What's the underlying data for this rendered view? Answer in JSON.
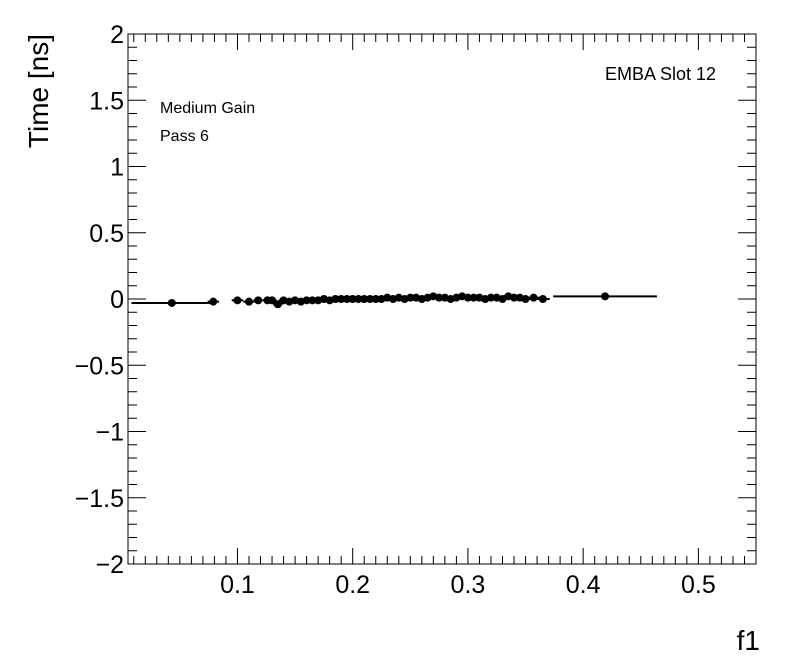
{
  "chart_data": {
    "type": "scatter",
    "title": "",
    "xlabel": "f1",
    "ylabel": "Time [ns]",
    "xlim": [
      0.005,
      0.55
    ],
    "ylim": [
      -2,
      2
    ],
    "x_ticks": [
      {
        "value": 0.1,
        "label": "0.1"
      },
      {
        "value": 0.2,
        "label": "0.2"
      },
      {
        "value": 0.3,
        "label": "0.3"
      },
      {
        "value": 0.4,
        "label": "0.4"
      },
      {
        "value": 0.5,
        "label": "0.5"
      }
    ],
    "y_ticks": [
      {
        "value": 2,
        "label": "2"
      },
      {
        "value": 1.5,
        "label": "1.5"
      },
      {
        "value": 1,
        "label": "1"
      },
      {
        "value": 0.5,
        "label": "0.5"
      },
      {
        "value": 0,
        "label": "0"
      },
      {
        "value": -0.5,
        "label": "−0.5"
      },
      {
        "value": -1,
        "label": "−1"
      },
      {
        "value": -1.5,
        "label": "−1.5"
      },
      {
        "value": -2,
        "label": "−2"
      }
    ],
    "annotations": {
      "module": "EMBA Slot 12",
      "gain": "Medium Gain",
      "pass": "Pass 6"
    },
    "marker_color": "#000000",
    "grid": false,
    "points": [
      {
        "x": 0.043,
        "y": -0.03,
        "xerr": 0.035
      },
      {
        "x": 0.079,
        "y": -0.02,
        "xerr": 0.005
      },
      {
        "x": 0.1,
        "y": -0.01,
        "xerr": 0.005
      },
      {
        "x": 0.11,
        "y": -0.02,
        "xerr": 0.005
      },
      {
        "x": 0.118,
        "y": -0.01,
        "xerr": 0.004
      },
      {
        "x": 0.126,
        "y": -0.01,
        "xerr": 0.004
      },
      {
        "x": 0.13,
        "y": -0.01,
        "xerr": 0.004
      },
      {
        "x": 0.135,
        "y": -0.04,
        "xerr": 0.004
      },
      {
        "x": 0.14,
        "y": -0.01,
        "xerr": 0.004
      },
      {
        "x": 0.145,
        "y": -0.02,
        "xerr": 0.004
      },
      {
        "x": 0.15,
        "y": -0.01,
        "xerr": 0.004
      },
      {
        "x": 0.155,
        "y": -0.02,
        "xerr": 0.004
      },
      {
        "x": 0.16,
        "y": -0.01,
        "xerr": 0.004
      },
      {
        "x": 0.165,
        "y": -0.01,
        "xerr": 0.004
      },
      {
        "x": 0.17,
        "y": -0.01,
        "xerr": 0.004
      },
      {
        "x": 0.175,
        "y": 0.0,
        "xerr": 0.004
      },
      {
        "x": 0.18,
        "y": -0.01,
        "xerr": 0.004
      },
      {
        "x": 0.185,
        "y": 0.0,
        "xerr": 0.004
      },
      {
        "x": 0.19,
        "y": 0.0,
        "xerr": 0.004
      },
      {
        "x": 0.195,
        "y": 0.0,
        "xerr": 0.004
      },
      {
        "x": 0.2,
        "y": 0.0,
        "xerr": 0.004
      },
      {
        "x": 0.205,
        "y": 0.0,
        "xerr": 0.004
      },
      {
        "x": 0.21,
        "y": 0.0,
        "xerr": 0.004
      },
      {
        "x": 0.215,
        "y": 0.0,
        "xerr": 0.004
      },
      {
        "x": 0.22,
        "y": 0.0,
        "xerr": 0.004
      },
      {
        "x": 0.225,
        "y": 0.0,
        "xerr": 0.004
      },
      {
        "x": 0.23,
        "y": 0.01,
        "xerr": 0.004
      },
      {
        "x": 0.235,
        "y": 0.0,
        "xerr": 0.004
      },
      {
        "x": 0.24,
        "y": 0.01,
        "xerr": 0.004
      },
      {
        "x": 0.245,
        "y": 0.0,
        "xerr": 0.004
      },
      {
        "x": 0.25,
        "y": 0.01,
        "xerr": 0.004
      },
      {
        "x": 0.255,
        "y": 0.01,
        "xerr": 0.004
      },
      {
        "x": 0.26,
        "y": 0.0,
        "xerr": 0.004
      },
      {
        "x": 0.265,
        "y": 0.01,
        "xerr": 0.004
      },
      {
        "x": 0.27,
        "y": 0.02,
        "xerr": 0.004
      },
      {
        "x": 0.275,
        "y": 0.01,
        "xerr": 0.004
      },
      {
        "x": 0.28,
        "y": 0.01,
        "xerr": 0.004
      },
      {
        "x": 0.285,
        "y": 0.0,
        "xerr": 0.004
      },
      {
        "x": 0.29,
        "y": 0.01,
        "xerr": 0.004
      },
      {
        "x": 0.295,
        "y": 0.02,
        "xerr": 0.004
      },
      {
        "x": 0.3,
        "y": 0.01,
        "xerr": 0.004
      },
      {
        "x": 0.305,
        "y": 0.01,
        "xerr": 0.004
      },
      {
        "x": 0.31,
        "y": 0.01,
        "xerr": 0.004
      },
      {
        "x": 0.315,
        "y": 0.0,
        "xerr": 0.004
      },
      {
        "x": 0.32,
        "y": 0.01,
        "xerr": 0.004
      },
      {
        "x": 0.325,
        "y": 0.01,
        "xerr": 0.004
      },
      {
        "x": 0.33,
        "y": 0.0,
        "xerr": 0.004
      },
      {
        "x": 0.335,
        "y": 0.02,
        "xerr": 0.004
      },
      {
        "x": 0.34,
        "y": 0.01,
        "xerr": 0.004
      },
      {
        "x": 0.345,
        "y": 0.01,
        "xerr": 0.004
      },
      {
        "x": 0.35,
        "y": 0.0,
        "xerr": 0.004
      },
      {
        "x": 0.357,
        "y": 0.01,
        "xerr": 0.005
      },
      {
        "x": 0.365,
        "y": 0.0,
        "xerr": 0.006
      },
      {
        "x": 0.419,
        "y": 0.02,
        "xerr": 0.045
      }
    ]
  }
}
